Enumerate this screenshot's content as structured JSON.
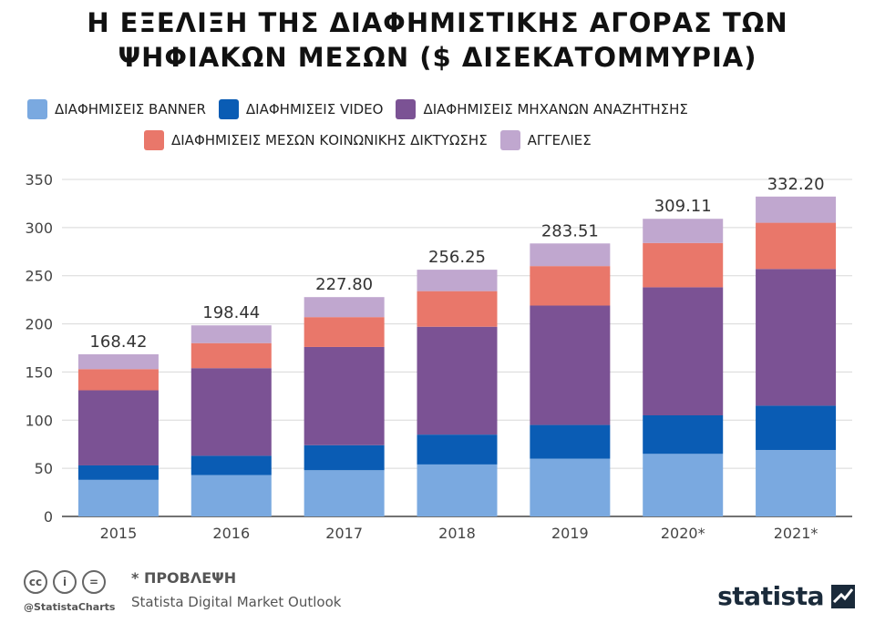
{
  "chart_data": {
    "type": "bar",
    "stacked": true,
    "title": "Η ΕΞΕΛΙΞΗ ΤΗΣ ΔΙΑΦΗΜΙΣΤΙΚΗΣ ΑΓΟΡΑΣ ΤΩΝ ΨΗΦΙΑΚΩΝ ΜΕΣΩΝ ($ ΔΙΣΕΚΑΤΟΜΜΥΡΙΑ)",
    "title_lines": [
      "Η ΕΞΕΛΙΞΗ ΤΗΣ ΔΙΑΦΗΜΙΣΤΙΚΗΣ ΑΓΟΡΑΣ ΤΩΝ",
      "ΨΗΦΙΑΚΩΝ ΜΕΣΩΝ ($ ΔΙΣΕΚΑΤΟΜΜΥΡΙΑ)"
    ],
    "categories": [
      "2015",
      "2016",
      "2017",
      "2018",
      "2019",
      "2020*",
      "2021*"
    ],
    "series": [
      {
        "name": "ΔΙΑΦΗΜΙΣΕΙΣ BANNER",
        "color": "#7aa9e0",
        "values": [
          38,
          43,
          48,
          54,
          60,
          65,
          69
        ]
      },
      {
        "name": "ΔΙΑΦΗΜΙΣΕΙΣ VIDEO",
        "color": "#0a5cb4",
        "values": [
          15,
          20,
          26,
          31,
          35,
          40,
          46
        ]
      },
      {
        "name": "ΔΙΑΦΗΜΙΣΕΙΣ ΜΗΧΑΝΩΝ ΑΝΑΖΗΤΗΣΗΣ",
        "color": "#7b5294",
        "values": [
          78,
          91,
          102,
          112,
          124,
          133,
          142
        ]
      },
      {
        "name": "ΔΙΑΦΗΜΙΣΕΙΣ ΜΕΣΩΝ ΚΟΙΝΩΝΙΚΗΣ ΔΙΚΤΥΩΣΗΣ",
        "color": "#e9776a",
        "values": [
          22,
          26,
          31,
          37,
          41,
          46,
          48
        ]
      },
      {
        "name": "ΑΓΓΕΛΙΕΣ",
        "color": "#c0a7cf",
        "values": [
          15.42,
          18.44,
          20.8,
          22.25,
          23.51,
          25.11,
          27.2
        ]
      }
    ],
    "totals": [
      "168.42",
      "198.44",
      "227.80",
      "256.25",
      "283.51",
      "309.11",
      "332.20"
    ],
    "y_ticks": [
      "0",
      "50",
      "100",
      "150",
      "200",
      "250",
      "300",
      "350"
    ],
    "ylim": [
      0,
      350
    ],
    "grid": true,
    "legend_position": "top"
  },
  "footer": {
    "cc_icons": [
      "cc",
      "i",
      "="
    ],
    "handle": "@StatistaCharts",
    "note": "* ΠΡΟΒΛΕΨΗ",
    "source": "Statista Digital Market Outlook",
    "brand": "statista"
  }
}
